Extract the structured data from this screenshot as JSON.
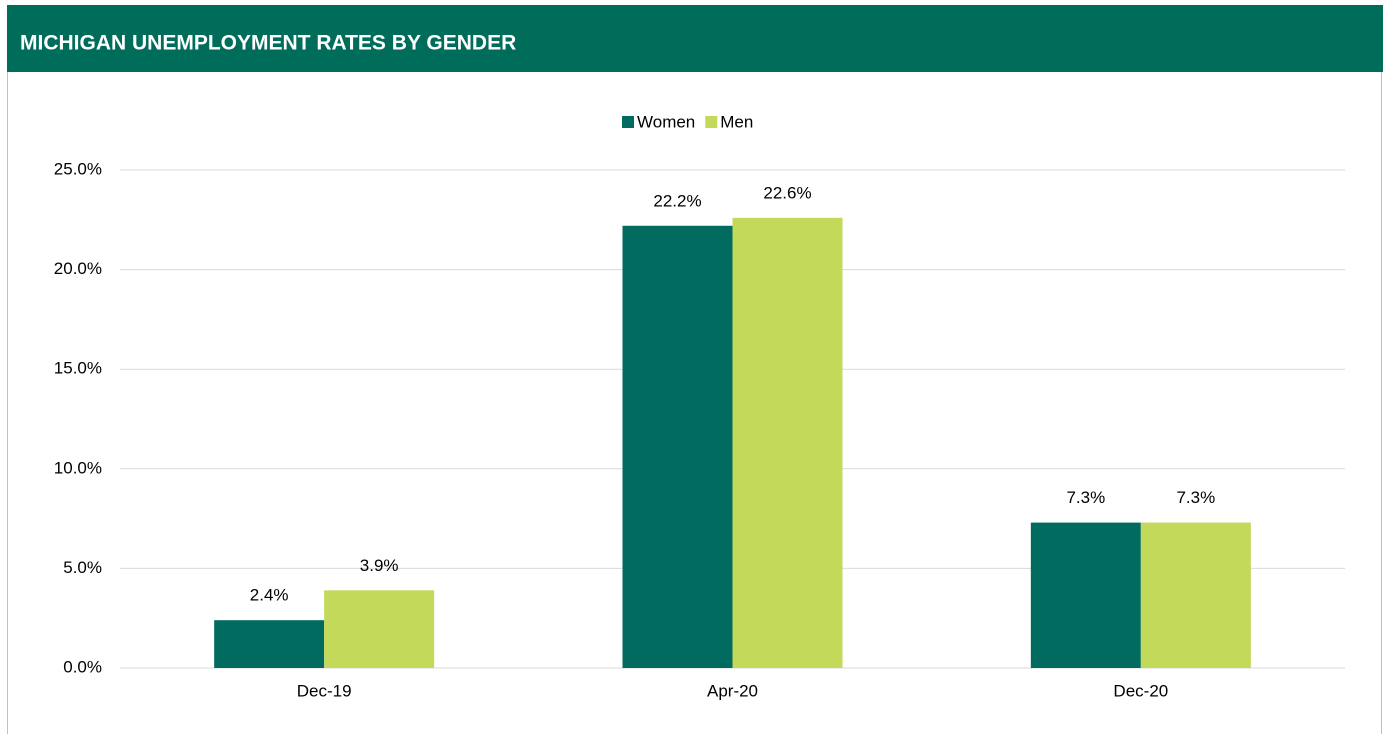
{
  "chart_data": {
    "type": "bar",
    "title": "MICHIGAN UNEMPLOYMENT RATES BY GENDER",
    "categories": [
      "Dec-19",
      "Apr-20",
      "Dec-20"
    ],
    "series": [
      {
        "name": "Women",
        "color": "#006b5e",
        "values": [
          2.4,
          22.2,
          7.3
        ],
        "value_labels": [
          "2.4%",
          "22.2%",
          "7.3%"
        ]
      },
      {
        "name": "Men",
        "color": "#c2d95a",
        "values": [
          3.9,
          22.6,
          7.3
        ],
        "value_labels": [
          "3.9%",
          "22.6%",
          "7.3%"
        ]
      }
    ],
    "ylim": [
      0,
      25
    ],
    "yticks": [
      {
        "value": 0,
        "label": "0.0%"
      },
      {
        "value": 5,
        "label": "5.0%"
      },
      {
        "value": 10,
        "label": "10.0%"
      },
      {
        "value": 15,
        "label": "15.0%"
      },
      {
        "value": 20,
        "label": "20.0%"
      },
      {
        "value": 25,
        "label": "25.0%"
      }
    ],
    "grid": true,
    "legend": "top"
  }
}
